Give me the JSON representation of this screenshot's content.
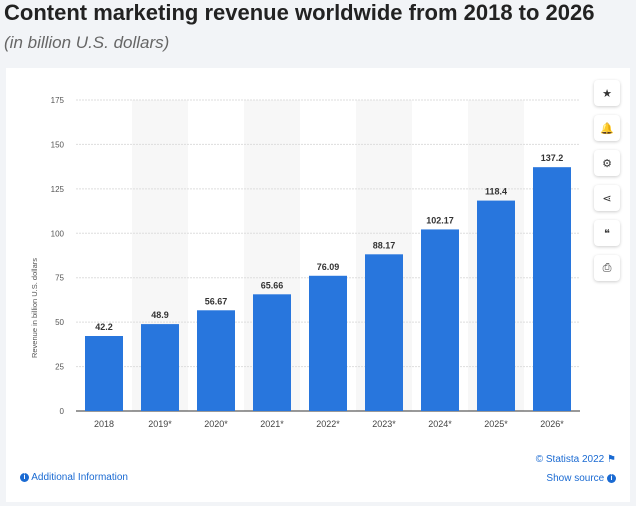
{
  "header": {
    "title": "Content marketing revenue worldwide from 2018 to 2026",
    "subtitle": "(in billion U.S. dollars)"
  },
  "sidebar": {
    "buttons": [
      {
        "icon": "star-icon",
        "glyph": "★"
      },
      {
        "icon": "bell-icon",
        "glyph": "🔔"
      },
      {
        "icon": "gear-icon",
        "glyph": "⚙"
      },
      {
        "icon": "share-icon",
        "glyph": "⋖"
      },
      {
        "icon": "quote-icon",
        "glyph": "❝"
      },
      {
        "icon": "print-icon",
        "glyph": "⎙"
      }
    ]
  },
  "footer": {
    "additional_info": "Additional Information",
    "copyright": "© Statista 2022",
    "show_source": "Show source"
  },
  "chart_data": {
    "type": "bar",
    "categories": [
      "2018",
      "2019*",
      "2020*",
      "2021*",
      "2022*",
      "2023*",
      "2024*",
      "2025*",
      "2026*"
    ],
    "values": [
      42.2,
      48.9,
      56.67,
      65.66,
      76.09,
      88.17,
      102.17,
      118.4,
      137.2
    ],
    "labels": [
      "42.2",
      "48.9",
      "56.67",
      "65.66",
      "76.09",
      "88.17",
      "102.17",
      "118.4",
      "137.2"
    ],
    "ylabel": "Revenue in billion U.S. dollars",
    "ylim": [
      0,
      175
    ],
    "yticks": [
      0,
      25,
      50,
      75,
      100,
      125,
      150,
      175
    ],
    "grid": true,
    "color": "#2876dd"
  }
}
